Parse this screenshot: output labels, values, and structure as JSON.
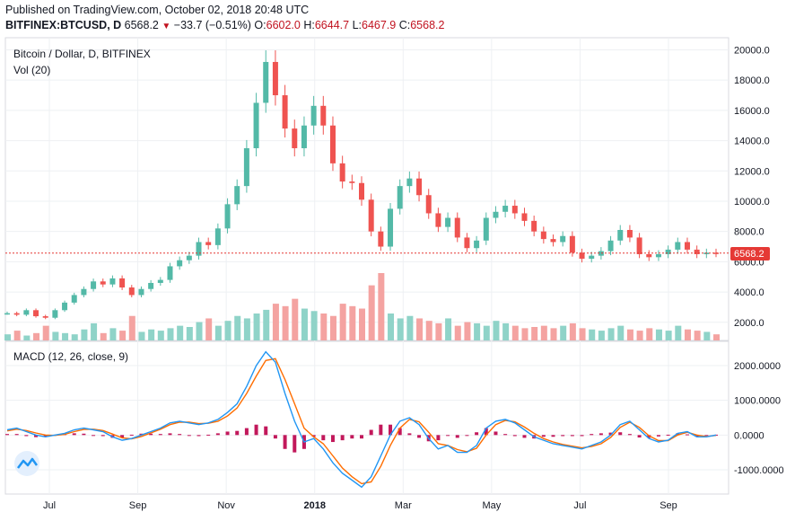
{
  "header": {
    "published": "Published on TradingView.com, October 02, 2018 20:48 UTC",
    "symbol": "BITFINEX:BTCUSD, D",
    "last": "6568.2",
    "change": "−33.7 (−0.51%)",
    "o_label": "O:",
    "o_value": "6602.0",
    "h_label": "H:",
    "h_value": "6644.7",
    "l_label": "L:",
    "l_value": "6467.9",
    "c_label": "C:",
    "c_value": "6568.2"
  },
  "price_pane": {
    "title": "Bitcoin / Dollar, D, BITFINEX",
    "volume_label": "Vol (20)",
    "price_badge": "6568.2"
  },
  "macd_pane": {
    "title": "MACD (12, 26, close, 9)"
  },
  "colors": {
    "up": "#53b9a7",
    "down": "#ef5350",
    "vol_up": "#8fd3c8",
    "vol_down": "#f4a3a1",
    "macd": "#2196f3",
    "signal": "#ff6d00",
    "hist": "#c2185b",
    "last_price_line": "#e53935"
  },
  "chart_data": [
    {
      "type": "candlestick",
      "title": "Bitcoin / Dollar, D, BITFINEX",
      "x_ticks": [
        "Jul",
        "Sep",
        "Nov",
        "2018",
        "Mar",
        "May",
        "Jul",
        "Sep"
      ],
      "y_ticks": [
        "2000.0",
        "4000.0",
        "6000.0",
        "8000.0",
        "10000.0",
        "12000.0",
        "14000.0",
        "16000.0",
        "18000.0",
        "20000.0"
      ],
      "ylim": [
        800,
        20800
      ],
      "last_price": 6568.2,
      "grid": true,
      "series": [
        {
          "name": "close",
          "values": [
            2600,
            2500,
            2800,
            2400,
            2300,
            2800,
            3300,
            3800,
            4200,
            4700,
            4500,
            4900,
            4300,
            3800,
            4200,
            4600,
            4800,
            5700,
            6100,
            6400,
            7300,
            7100,
            8200,
            9800,
            11000,
            13500,
            16500,
            19200,
            17000,
            14800,
            13500,
            15000,
            16300,
            15000,
            12500,
            11300,
            11200,
            10100,
            8000,
            7000,
            9500,
            11000,
            11500,
            10400,
            9200,
            8300,
            8900,
            7600,
            6900,
            7400,
            8900,
            9300,
            9700,
            9200,
            8700,
            8000,
            7500,
            7300,
            7700,
            6600,
            6200,
            6400,
            6700,
            7400,
            8100,
            7600,
            6500,
            6300,
            6500,
            6800,
            7300,
            6800,
            6500,
            6600,
            6568
          ]
        },
        {
          "name": "Vol (20)",
          "values": [
            5,
            8,
            4,
            6,
            12,
            7,
            6,
            5,
            9,
            14,
            6,
            10,
            8,
            20,
            7,
            9,
            8,
            10,
            12,
            11,
            15,
            18,
            12,
            16,
            20,
            18,
            22,
            25,
            30,
            28,
            34,
            26,
            24,
            22,
            20,
            30,
            28,
            26,
            45,
            55,
            22,
            18,
            20,
            18,
            16,
            14,
            18,
            12,
            15,
            14,
            12,
            16,
            14,
            12,
            10,
            11,
            12,
            10,
            12,
            14,
            10,
            9,
            8,
            10,
            12,
            9,
            8,
            10,
            9,
            8,
            12,
            9,
            8,
            7,
            5
          ]
        }
      ]
    },
    {
      "type": "line",
      "title": "MACD (12, 26, close, 9)",
      "y_ticks": [
        "-1000.0000",
        "0.0000",
        "1000.0000",
        "2000.0000"
      ],
      "ylim": [
        -1700,
        2700
      ],
      "grid": true,
      "series": [
        {
          "name": "MACD",
          "values": [
            150,
            200,
            100,
            0,
            -50,
            0,
            50,
            150,
            200,
            150,
            100,
            -50,
            -150,
            -100,
            0,
            100,
            200,
            350,
            400,
            350,
            300,
            350,
            450,
            650,
            900,
            1400,
            2000,
            2400,
            2100,
            1200,
            400,
            -200,
            -100,
            -400,
            -800,
            -1100,
            -1300,
            -1500,
            -1200,
            -600,
            0,
            400,
            500,
            300,
            -100,
            -400,
            -300,
            -500,
            -500,
            -300,
            200,
            400,
            450,
            350,
            150,
            -50,
            -150,
            -250,
            -300,
            -350,
            -400,
            -300,
            -200,
            0,
            300,
            400,
            150,
            -100,
            -200,
            -150,
            50,
            100,
            -50,
            -50,
            0
          ]
        },
        {
          "name": "Signal",
          "values": [
            120,
            170,
            130,
            60,
            0,
            -10,
            20,
            100,
            160,
            170,
            130,
            30,
            -80,
            -110,
            -40,
            60,
            170,
            300,
            370,
            370,
            330,
            340,
            400,
            550,
            780,
            1200,
            1700,
            2150,
            2200,
            1600,
            900,
            200,
            -50,
            -250,
            -600,
            -950,
            -1200,
            -1400,
            -1350,
            -900,
            -300,
            200,
            450,
            380,
            80,
            -250,
            -300,
            -420,
            -480,
            -380,
            0,
            300,
            420,
            380,
            230,
            50,
            -100,
            -200,
            -270,
            -320,
            -370,
            -330,
            -250,
            -70,
            220,
            370,
            220,
            -20,
            -160,
            -160,
            0,
            80,
            0,
            -40,
            -10
          ]
        }
      ]
    }
  ]
}
